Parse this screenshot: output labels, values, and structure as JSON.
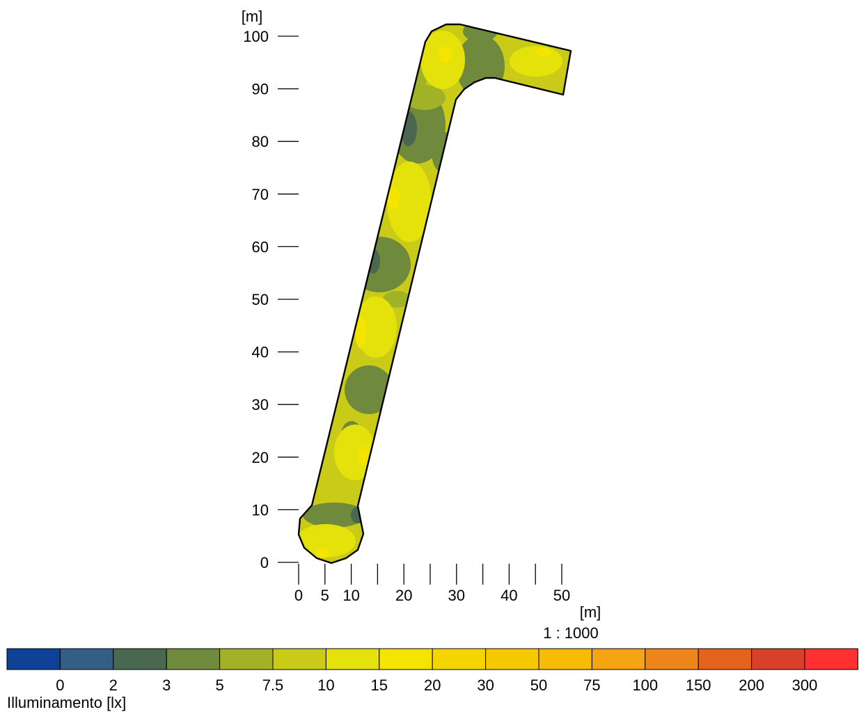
{
  "y_axis": {
    "unit": "[m]",
    "ticks": [
      "0",
      "10",
      "20",
      "30",
      "40",
      "50",
      "60",
      "70",
      "80",
      "90",
      "100"
    ]
  },
  "x_axis": {
    "unit": "[m]",
    "tick_labels": [
      "0",
      "5",
      "10",
      "20",
      "30",
      "40",
      "50"
    ],
    "minor_ticks": [
      15,
      25,
      35,
      45
    ]
  },
  "scale": "1 : 1000",
  "legend": {
    "title": "Illuminamento [lx]",
    "values": [
      "0",
      "2",
      "3",
      "5",
      "7.5",
      "10",
      "15",
      "20",
      "30",
      "50",
      "75",
      "100",
      "150",
      "200",
      "300"
    ],
    "colors": [
      "#0f4296",
      "#355e86",
      "#4a6750",
      "#6f8a3c",
      "#a2b228",
      "#c9cb18",
      "#e4e20a",
      "#f5e400",
      "#f5d500",
      "#f5c800",
      "#f7bc06",
      "#f5a512",
      "#ee861c",
      "#e2621e",
      "#d8402a",
      "#ff3030"
    ]
  },
  "contour_colors": {
    "base": "#c9cb18",
    "bright": "#e4e20a",
    "peak": "#f5e400",
    "dark": "#6f8a3c",
    "darker": "#4a6750",
    "dim": "#a2b228",
    "outline": "#000000"
  }
}
